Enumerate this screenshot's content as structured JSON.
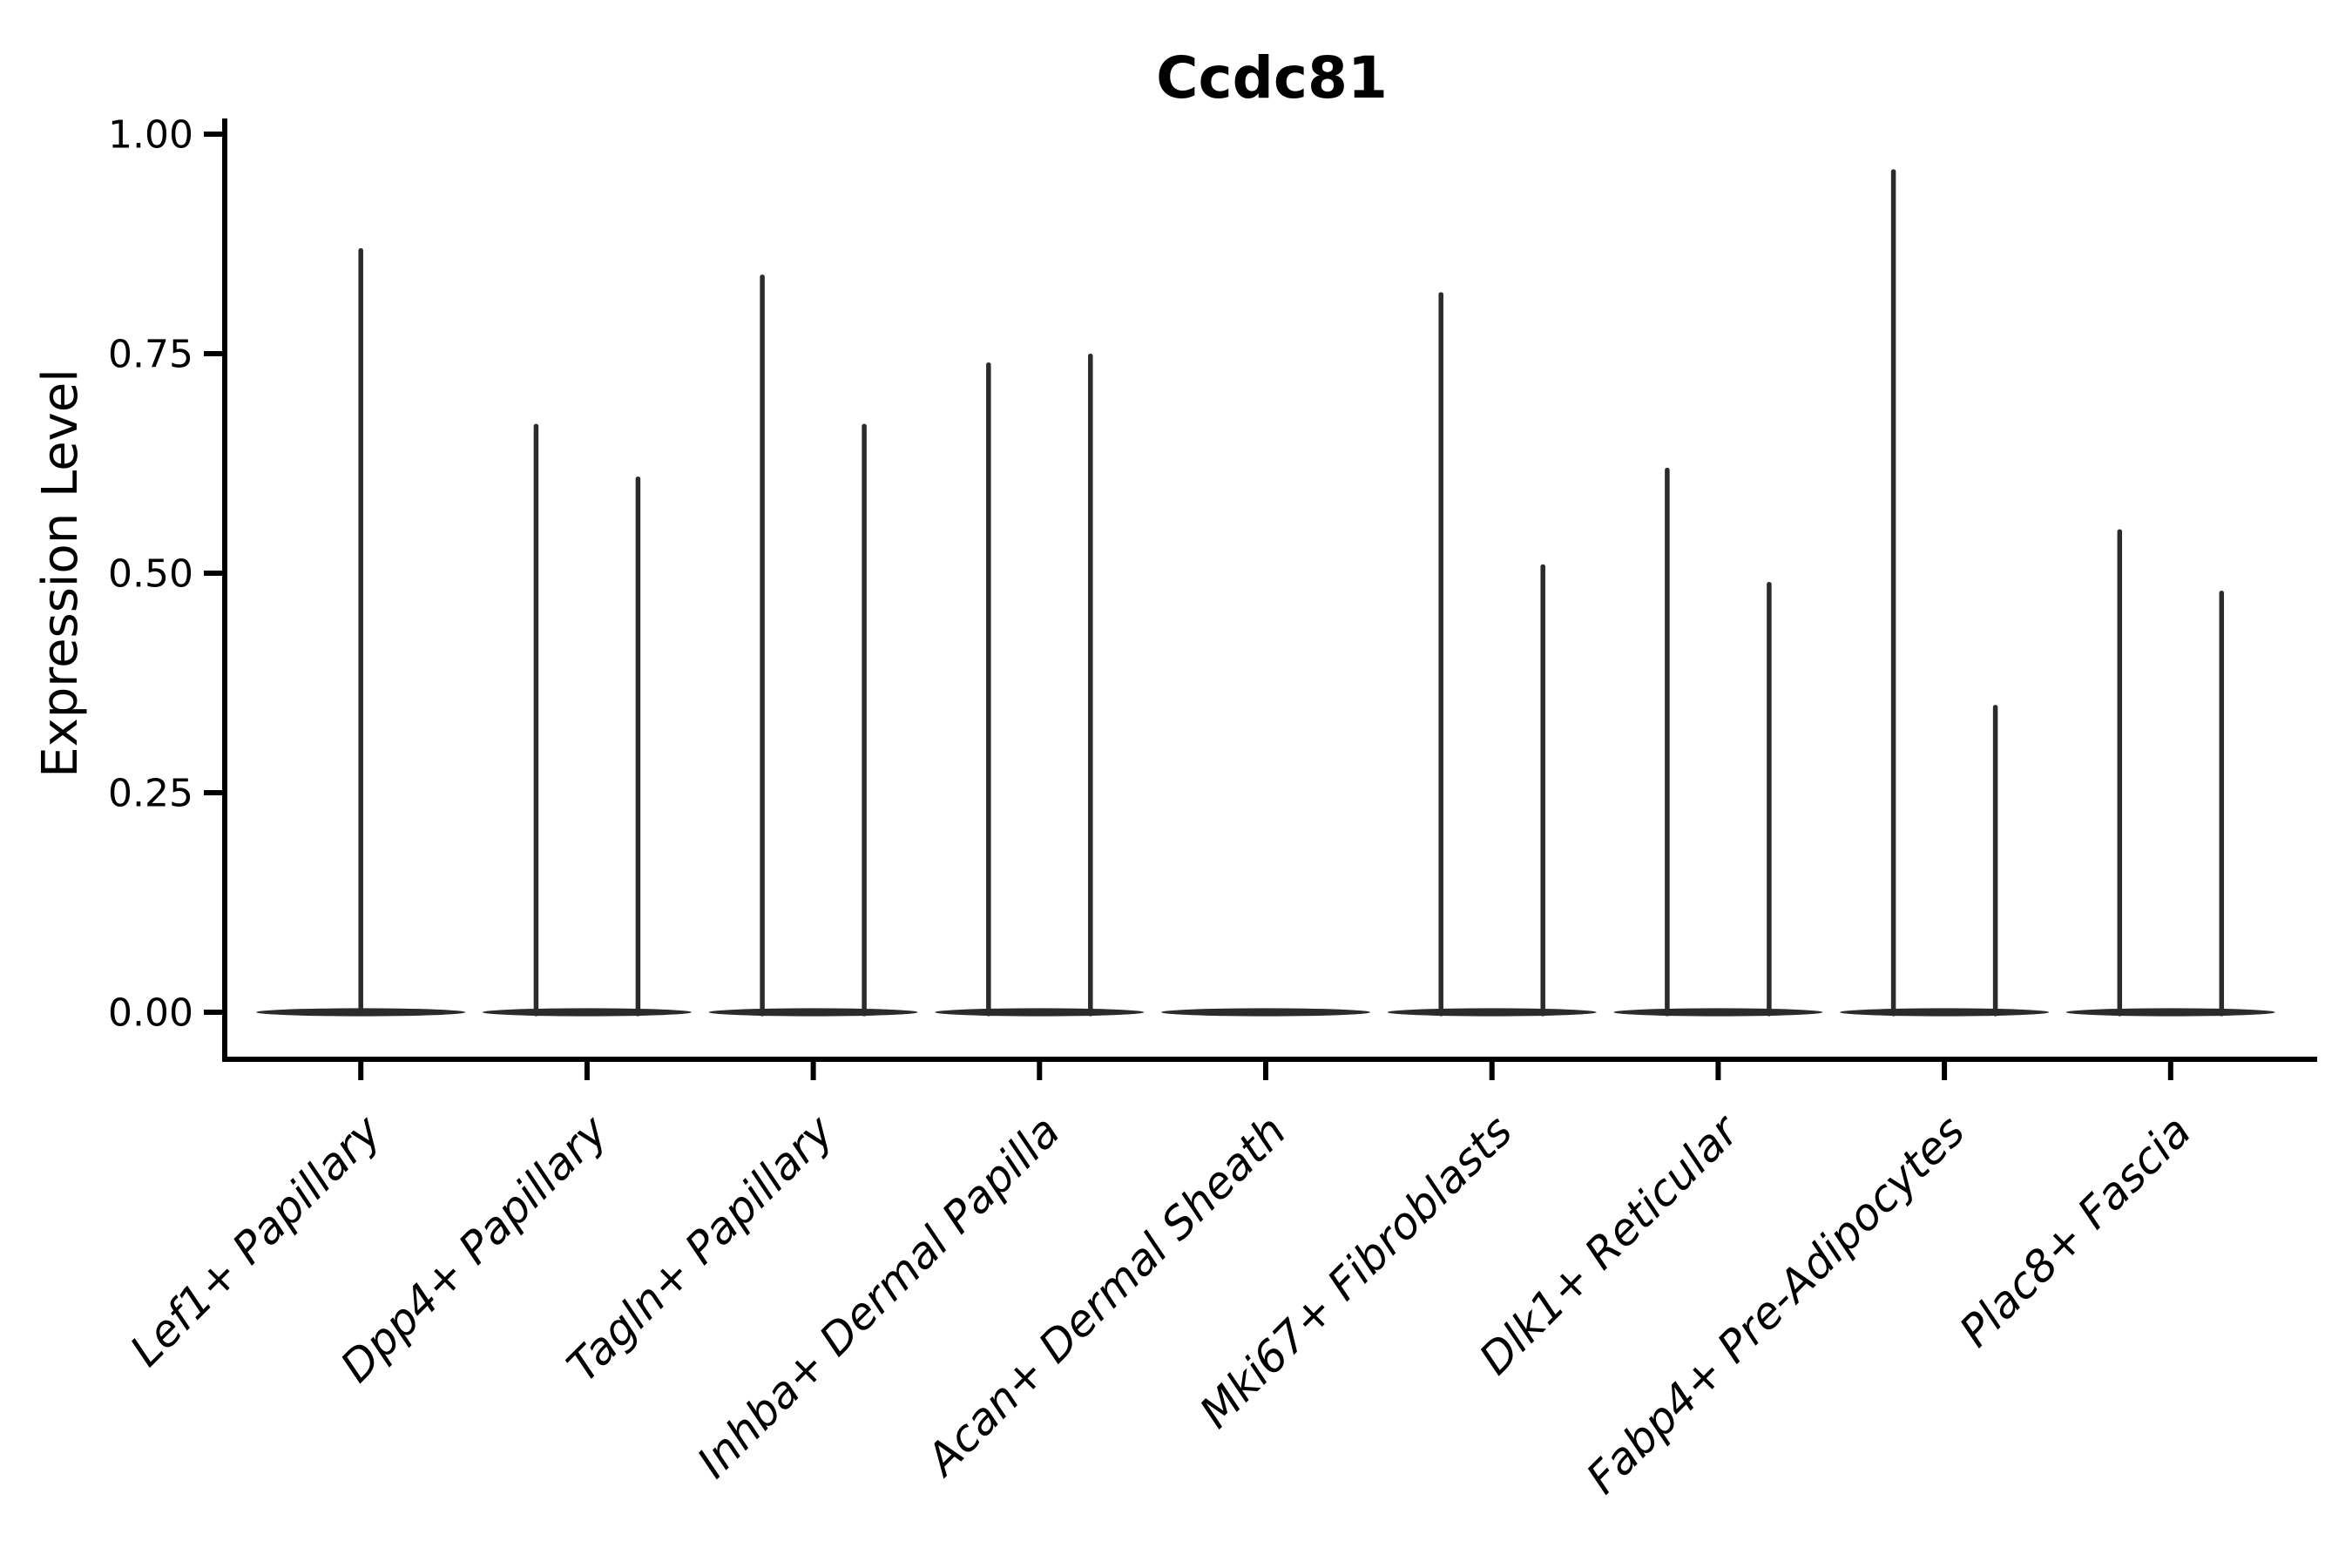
{
  "title": "Ccdc81",
  "y_axis": {
    "label": "Expression Level",
    "ticks": [
      "0.00",
      "0.25",
      "0.50",
      "0.75",
      "1.00"
    ],
    "tick_values": [
      0.0,
      0.25,
      0.5,
      0.75,
      1.0
    ]
  },
  "chart_data": {
    "type": "violin",
    "title": "Ccdc81",
    "xlabel": "",
    "ylabel": "Expression Level",
    "ylim": [
      0.0,
      1.0
    ],
    "yticks": [
      0.0,
      0.25,
      0.5,
      0.75,
      1.0
    ],
    "grid": false,
    "legend_position": "none",
    "style": "needle violins: flat near-zero density bodies at 0 with thin single-cell spikes; two dodged violins per category, one centered violin when only one group present",
    "colors": {
      "violin": "#2b2b2b",
      "axis": "#000000",
      "background": "#ffffff"
    },
    "categories": [
      "Lef1+ Papillary",
      "Dpp4+ Papillary",
      "Tagln+ Papillary",
      "Inhba+ Dermal Papilla",
      "Acan+ Dermal Sheath",
      "Mki67+ Fibroblasts",
      "Dlk1+ Reticular",
      "Fabp4+ Pre-Adipocytes",
      "Plac8+ Fascia"
    ],
    "violins": [
      {
        "category": "Lef1+ Papillary",
        "spikes": [
          {
            "position": "center",
            "peak": 0.87
          }
        ]
      },
      {
        "category": "Dpp4+ Papillary",
        "spikes": [
          {
            "position": "left",
            "peak": 0.67
          },
          {
            "position": "right",
            "peak": 0.61
          }
        ]
      },
      {
        "category": "Tagln+ Papillary",
        "spikes": [
          {
            "position": "left",
            "peak": 0.84
          },
          {
            "position": "right",
            "peak": 0.67
          }
        ]
      },
      {
        "category": "Inhba+ Dermal Papilla",
        "spikes": [
          {
            "position": "left",
            "peak": 0.74
          },
          {
            "position": "right",
            "peak": 0.75
          }
        ]
      },
      {
        "category": "Acan+ Dermal Sheath",
        "spikes": []
      },
      {
        "category": "Mki67+ Fibroblasts",
        "spikes": [
          {
            "position": "left",
            "peak": 0.82
          },
          {
            "position": "right",
            "peak": 0.51
          }
        ]
      },
      {
        "category": "Dlk1+ Reticular",
        "spikes": [
          {
            "position": "left",
            "peak": 0.62
          },
          {
            "position": "right",
            "peak": 0.49
          }
        ]
      },
      {
        "category": "Fabp4+ Pre-Adipocytes",
        "spikes": [
          {
            "position": "left",
            "peak": 0.96
          },
          {
            "position": "right",
            "peak": 0.35
          }
        ]
      },
      {
        "category": "Plac8+ Fascia",
        "spikes": [
          {
            "position": "left",
            "peak": 0.55
          },
          {
            "position": "right",
            "peak": 0.48
          }
        ]
      }
    ]
  }
}
